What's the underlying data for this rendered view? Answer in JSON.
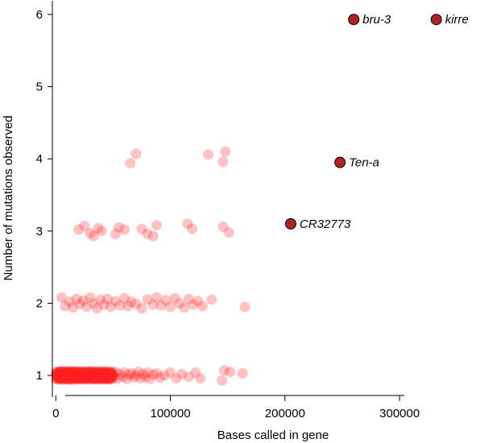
{
  "chart_data": {
    "type": "scatter",
    "title": "",
    "xlabel": "Bases called in gene",
    "ylabel": "Number of mutations observed",
    "xlim": [
      -3000,
      385000
    ],
    "ylim": [
      0.7,
      6.2
    ],
    "xticks": [
      0,
      100000,
      200000,
      300000
    ],
    "xtick_labels": [
      "0",
      "100000",
      "200000",
      "300000"
    ],
    "yticks": [
      1,
      2,
      3,
      4,
      5,
      6
    ],
    "ytick_labels": [
      "1",
      "2",
      "3",
      "4",
      "5",
      "6"
    ],
    "grid": false,
    "colors": {
      "background_points": "#ff2020",
      "highlight_fill": "#b22222",
      "highlight_stroke": "#000000"
    },
    "background_points": {
      "y1": [
        [
          1000,
          1.0
        ],
        [
          1500,
          0.96
        ],
        [
          2000,
          1.04
        ],
        [
          2500,
          1.0
        ],
        [
          3000,
          0.95
        ],
        [
          3500,
          1.05
        ],
        [
          4000,
          0.99
        ],
        [
          4500,
          1.02
        ],
        [
          5000,
          0.97
        ],
        [
          5500,
          1.06
        ],
        [
          6000,
          1.0
        ],
        [
          6500,
          0.94
        ],
        [
          7000,
          1.03
        ],
        [
          7500,
          0.98
        ],
        [
          8000,
          1.05
        ],
        [
          8500,
          1.0
        ],
        [
          9000,
          0.96
        ],
        [
          9500,
          1.02
        ],
        [
          10000,
          0.99
        ],
        [
          10500,
          1.04
        ],
        [
          11000,
          0.95
        ],
        [
          11500,
          1.01
        ],
        [
          12000,
          1.06
        ],
        [
          12500,
          0.98
        ],
        [
          13000,
          1.0
        ],
        [
          13500,
          0.94
        ],
        [
          14000,
          1.03
        ],
        [
          14500,
          0.97
        ],
        [
          15000,
          1.05
        ],
        [
          15500,
          1.0
        ],
        [
          16000,
          0.96
        ],
        [
          16500,
          1.02
        ],
        [
          17000,
          0.99
        ],
        [
          17500,
          1.05
        ],
        [
          18000,
          0.95
        ],
        [
          18500,
          1.01
        ],
        [
          19000,
          1.04
        ],
        [
          19500,
          0.98
        ],
        [
          20000,
          1.0
        ],
        [
          21000,
          0.96
        ],
        [
          22000,
          1.03
        ],
        [
          23000,
          0.99
        ],
        [
          24000,
          1.05
        ],
        [
          25000,
          0.95
        ],
        [
          26000,
          1.01
        ],
        [
          27000,
          1.04
        ],
        [
          28000,
          0.97
        ],
        [
          29000,
          1.0
        ],
        [
          30000,
          1.06
        ],
        [
          31000,
          0.96
        ],
        [
          32000,
          1.02
        ],
        [
          33000,
          0.99
        ],
        [
          34000,
          1.04
        ],
        [
          35000,
          0.95
        ],
        [
          36000,
          1.01
        ],
        [
          37000,
          1.03
        ],
        [
          38000,
          0.97
        ],
        [
          39000,
          1.0
        ],
        [
          40000,
          1.05
        ],
        [
          41000,
          0.96
        ],
        [
          42000,
          1.02
        ],
        [
          43000,
          0.99
        ],
        [
          44000,
          1.04
        ],
        [
          45000,
          0.95
        ],
        [
          46000,
          1.01
        ],
        [
          47000,
          1.03
        ],
        [
          48000,
          0.97
        ],
        [
          50000,
          1.0
        ],
        [
          52000,
          1.05
        ],
        [
          54000,
          0.96
        ],
        [
          56000,
          1.02
        ],
        [
          58000,
          0.98
        ],
        [
          60000,
          1.04
        ],
        [
          62000,
          0.95
        ],
        [
          64000,
          1.01
        ],
        [
          66000,
          1.03
        ],
        [
          68000,
          0.97
        ],
        [
          70000,
          1.0
        ],
        [
          72000,
          1.05
        ],
        [
          74000,
          0.96
        ],
        [
          76000,
          1.02
        ],
        [
          78000,
          0.98
        ],
        [
          80000,
          1.04
        ],
        [
          82000,
          0.95
        ],
        [
          85000,
          1.01
        ],
        [
          88000,
          1.03
        ],
        [
          91000,
          0.97
        ],
        [
          95000,
          1.0
        ],
        [
          100000,
          1.04
        ],
        [
          105000,
          0.96
        ],
        [
          110000,
          1.02
        ],
        [
          116000,
          0.98
        ],
        [
          122000,
          1.04
        ],
        [
          126000,
          0.96
        ],
        [
          145000,
          0.93
        ],
        [
          147000,
          1.07
        ],
        [
          152000,
          1.05
        ],
        [
          163000,
          1.03
        ]
      ],
      "y2": [
        [
          5000,
          2.08
        ],
        [
          8000,
          1.96
        ],
        [
          12000,
          2.02
        ],
        [
          15000,
          1.94
        ],
        [
          18000,
          2.06
        ],
        [
          21000,
          1.99
        ],
        [
          24000,
          2.04
        ],
        [
          27000,
          1.95
        ],
        [
          30000,
          2.08
        ],
        [
          33000,
          2.0
        ],
        [
          36000,
          1.93
        ],
        [
          39000,
          2.05
        ],
        [
          42000,
          1.98
        ],
        [
          45000,
          2.06
        ],
        [
          48000,
          1.95
        ],
        [
          52000,
          2.03
        ],
        [
          56000,
          1.97
        ],
        [
          60000,
          2.07
        ],
        [
          63000,
          1.96
        ],
        [
          66000,
          2.02
        ],
        [
          70000,
          1.99
        ],
        [
          75000,
          1.93
        ],
        [
          80000,
          2.05
        ],
        [
          85000,
          1.98
        ],
        [
          88000,
          2.08
        ],
        [
          92000,
          1.97
        ],
        [
          96000,
          2.04
        ],
        [
          100000,
          1.95
        ],
        [
          104000,
          2.07
        ],
        [
          108000,
          2.0
        ],
        [
          112000,
          1.94
        ],
        [
          116000,
          2.06
        ],
        [
          120000,
          1.98
        ],
        [
          124000,
          2.03
        ],
        [
          128000,
          1.96
        ],
        [
          136000,
          2.05
        ],
        [
          165000,
          1.95
        ]
      ],
      "y3": [
        [
          20000,
          3.02
        ],
        [
          25000,
          3.07
        ],
        [
          30000,
          2.97
        ],
        [
          33000,
          2.93
        ],
        [
          37000,
          3.04
        ],
        [
          40000,
          3.0
        ],
        [
          52000,
          2.96
        ],
        [
          55000,
          3.05
        ],
        [
          60000,
          3.02
        ],
        [
          75000,
          3.03
        ],
        [
          80000,
          2.96
        ],
        [
          85000,
          2.93
        ],
        [
          88000,
          3.08
        ],
        [
          115000,
          3.1
        ],
        [
          119000,
          3.03
        ],
        [
          146000,
          3.06
        ],
        [
          151000,
          2.98
        ]
      ],
      "y4": [
        [
          65000,
          3.94
        ],
        [
          70000,
          4.07
        ],
        [
          133000,
          4.06
        ],
        [
          146000,
          3.96
        ],
        [
          148000,
          4.1
        ]
      ]
    },
    "highlighted_genes": [
      {
        "label": "CR32773",
        "x": 205000,
        "y": 3.1
      },
      {
        "label": "Ten-a",
        "x": 248000,
        "y": 3.95
      },
      {
        "label": "bru-3",
        "x": 260000,
        "y": 5.93
      },
      {
        "label": "kirre",
        "x": 332000,
        "y": 5.93
      }
    ]
  }
}
